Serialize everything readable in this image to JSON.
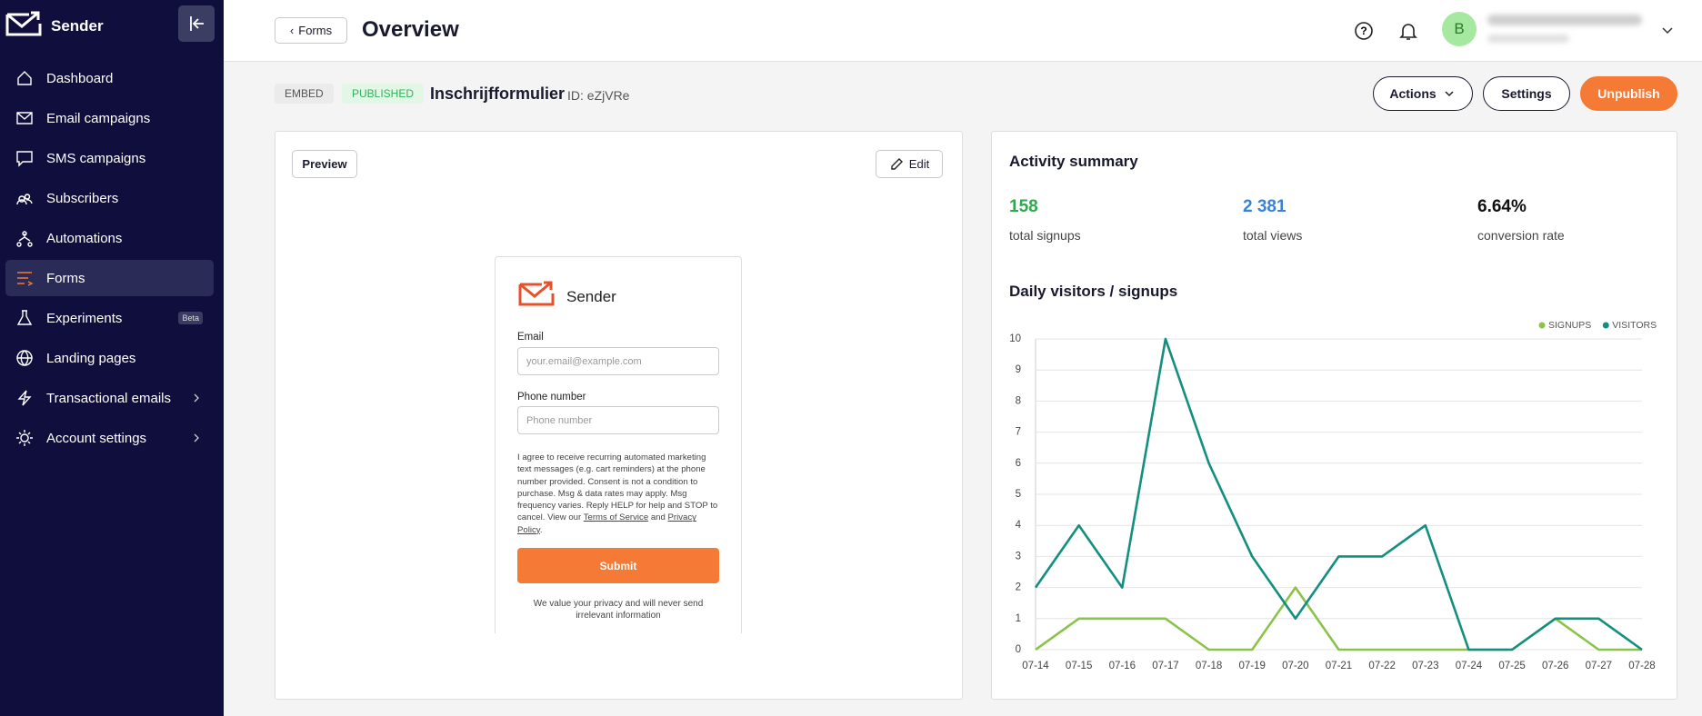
{
  "sidebar": {
    "brand": "Sender",
    "nav": [
      {
        "label": "Dashboard"
      },
      {
        "label": "Email campaigns"
      },
      {
        "label": "SMS campaigns"
      },
      {
        "label": "Subscribers"
      },
      {
        "label": "Automations"
      },
      {
        "label": "Forms"
      },
      {
        "label": "Experiments",
        "badge": "Beta"
      },
      {
        "label": "Landing pages"
      },
      {
        "label": "Transactional emails"
      },
      {
        "label": "Account settings"
      }
    ]
  },
  "header": {
    "back": "Forms",
    "title": "Overview",
    "avatar": "B"
  },
  "form": {
    "type_badge": "EMBED",
    "status": "PUBLISHED",
    "name": "Inschrijfformulier",
    "id": "ID: eZjVRe",
    "actions": [
      "Actions",
      "Settings",
      "Unpublish"
    ]
  },
  "preview": {
    "preview_button": "Preview",
    "edit_button": "Edit",
    "brand": "Sender",
    "email_label": "Email",
    "email_placeholder": "your.email@example.com",
    "phone_label": "Phone number",
    "phone_placeholder": "Phone number",
    "consent": [
      "I agree to receive recurring automated marketing text messages (e.g. cart reminders) at the phone number provided. Consent is not a condition to purchase. Msg & data rates may apply. Msg frequency varies. Reply HELP for help and STOP to cancel. View our",
      "Terms of Service",
      "and",
      "Privacy Policy",
      "."
    ],
    "submit": "Submit",
    "privacy_note": "We value your privacy and will never send irrelevant information"
  },
  "summary": {
    "title": "Activity summary",
    "stats": [
      {
        "value": "158",
        "label": "total signups"
      },
      {
        "value": "2 381",
        "label": "total views"
      },
      {
        "value": "6.64%",
        "label": "conversion rate"
      }
    ]
  },
  "chart_data": {
    "type": "line",
    "title": "Daily visitors / signups",
    "categories": [
      "07-14",
      "07-15",
      "07-16",
      "07-17",
      "07-18",
      "07-19",
      "07-20",
      "07-21",
      "07-22",
      "07-23",
      "07-24",
      "07-25",
      "07-26",
      "07-27",
      "07-28"
    ],
    "series": [
      {
        "name": "SIGNUPS",
        "color": "#8bc34a",
        "values": [
          0,
          1,
          1,
          1,
          0,
          0,
          2,
          0,
          0,
          0,
          0,
          0,
          1,
          0,
          0
        ]
      },
      {
        "name": "VISITORS",
        "color": "#138f7f",
        "values": [
          2,
          4,
          2,
          10,
          6,
          3,
          1,
          3,
          3,
          4,
          0,
          0,
          1,
          1,
          0
        ]
      }
    ],
    "ylim": [
      0,
      10
    ],
    "yticks": [
      0,
      1,
      2,
      3,
      4,
      5,
      6,
      7,
      8,
      9,
      10
    ],
    "grid": true,
    "legend": "top-right"
  }
}
